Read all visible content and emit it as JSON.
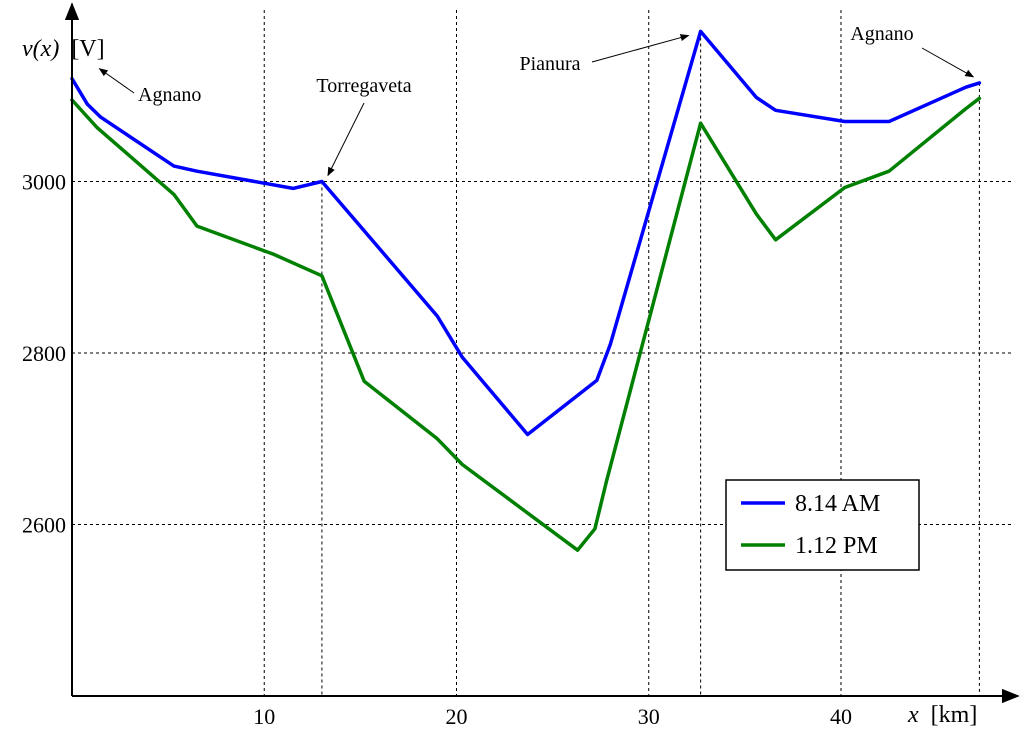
{
  "chart_data": {
    "type": "line",
    "xlabel_var": "x",
    "xlabel_unit": "[km]",
    "ylabel_var_pre": "v(",
    "ylabel_var_mid": "x",
    "ylabel_var_post": ")",
    "ylabel_unit": "[V]",
    "xlim": [
      0,
      49
    ],
    "ylim": [
      2400,
      3200
    ],
    "xticks": [
      10,
      20,
      30,
      40
    ],
    "yticks": [
      2600,
      2800,
      3000
    ],
    "grid": true,
    "legend_position": "lower-right",
    "vlines": [
      13,
      32.7,
      47.2
    ],
    "series": [
      {
        "name": "8.14 AM",
        "color": "#0000ff",
        "x": [
          0,
          0.8,
          1.5,
          5.3,
          6.5,
          11.5,
          13,
          19,
          20.3,
          23.7,
          27.3,
          28,
          32.7,
          35.6,
          36.6,
          40.2,
          42.5,
          46.5,
          47.2
        ],
        "y": [
          3120,
          3090,
          3075,
          3018,
          3012,
          2992,
          3000,
          2843,
          2795,
          2705,
          2768,
          2810,
          3175,
          3098,
          3083,
          3070,
          3070,
          3110,
          3115
        ]
      },
      {
        "name": "1.12 PM",
        "color": "#008000",
        "x": [
          0,
          1.3,
          5.3,
          6.5,
          10.5,
          13,
          15.2,
          19,
          20.3,
          26.3,
          27.2,
          27.8,
          32.7,
          35.6,
          36.6,
          40.2,
          42.5,
          46.5,
          47.2
        ],
        "y": [
          3095,
          3063,
          2985,
          2948,
          2915,
          2890,
          2767,
          2700,
          2670,
          2570,
          2595,
          2650,
          3068,
          2962,
          2932,
          2993,
          3012,
          3085,
          3097
        ]
      }
    ],
    "annotations": [
      {
        "text": "Agnano",
        "target": [
          0.8,
          3120
        ]
      },
      {
        "text": "Torregaveta",
        "target": [
          13,
          3000
        ]
      },
      {
        "text": "Pianura",
        "target": [
          32.7,
          3175
        ]
      },
      {
        "text": "Agnano",
        "target": [
          47.2,
          3115
        ]
      }
    ]
  }
}
